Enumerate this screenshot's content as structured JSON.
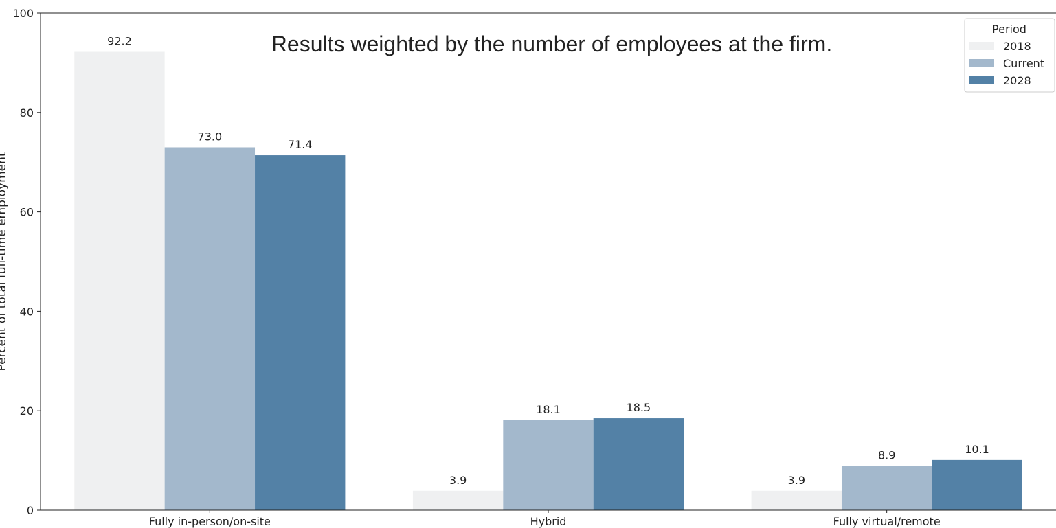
{
  "chart_data": {
    "type": "bar",
    "annotation": "Results weighted by the number of employees at the firm.",
    "ylabel": "Percent of total full-time employment",
    "xlabel": "",
    "ylim": [
      0,
      100
    ],
    "yticks": [
      0,
      20,
      40,
      60,
      80,
      100
    ],
    "categories": [
      "Fully in-person/on-site",
      "Hybrid",
      "Fully virtual/remote"
    ],
    "series": [
      {
        "name": "2018",
        "color": "#eff0f1",
        "values": [
          92.2,
          3.9,
          3.9
        ]
      },
      {
        "name": "Current",
        "color": "#a3b8cc",
        "values": [
          73.0,
          18.1,
          8.9
        ]
      },
      {
        "name": "2028",
        "color": "#5381a6",
        "values": [
          71.4,
          18.5,
          10.1
        ]
      }
    ],
    "legend": {
      "title": "Period",
      "placement": "top-right"
    },
    "grid": false
  }
}
